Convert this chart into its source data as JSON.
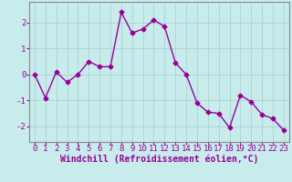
{
  "x": [
    0,
    1,
    2,
    3,
    4,
    5,
    6,
    7,
    8,
    9,
    10,
    11,
    12,
    13,
    14,
    15,
    16,
    17,
    18,
    19,
    20,
    21,
    22,
    23
  ],
  "y": [
    0,
    -0.9,
    0.1,
    -0.3,
    0.0,
    0.5,
    0.3,
    0.3,
    2.4,
    1.6,
    1.75,
    2.1,
    1.85,
    0.45,
    0.0,
    -1.1,
    -1.45,
    -1.5,
    -2.05,
    -0.8,
    -1.05,
    -1.55,
    -1.7,
    -2.15
  ],
  "line_color": "#990099",
  "marker": "D",
  "markersize": 2.5,
  "linewidth": 1.0,
  "xlabel": "Windchill (Refroidissement éolien,°C)",
  "xlim": [
    -0.5,
    23.5
  ],
  "ylim": [
    -2.6,
    2.8
  ],
  "yticks": [
    -2,
    -1,
    0,
    1,
    2
  ],
  "xticks": [
    0,
    1,
    2,
    3,
    4,
    5,
    6,
    7,
    8,
    9,
    10,
    11,
    12,
    13,
    14,
    15,
    16,
    17,
    18,
    19,
    20,
    21,
    22,
    23
  ],
  "background_color": "#c8ecec",
  "grid_color": "#a8d4d4",
  "tick_label_color": "#990099",
  "xlabel_color": "#990099",
  "xlabel_fontsize": 7.0,
  "tick_fontsize": 6.5,
  "spine_color": "#888888"
}
